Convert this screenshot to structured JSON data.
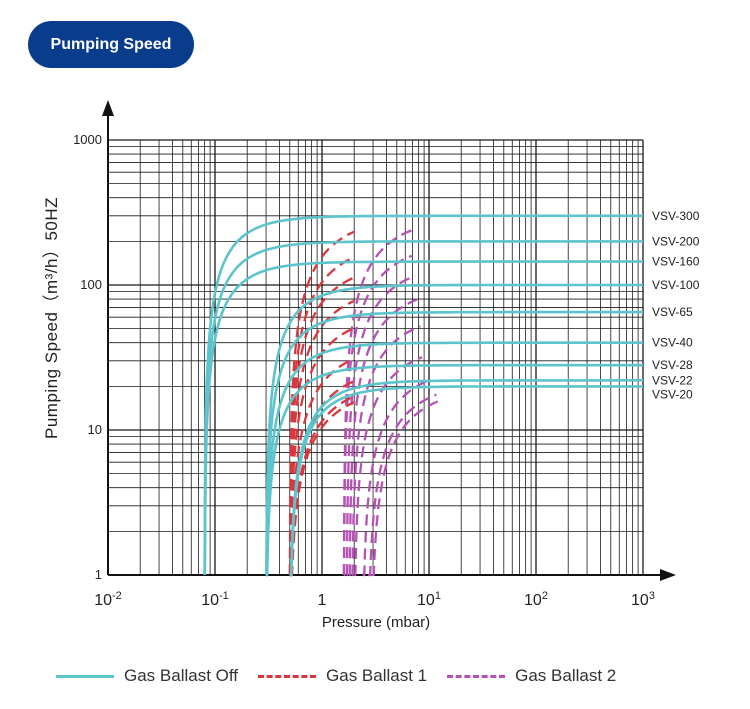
{
  "header": {
    "badge_label": "Pumping Speed"
  },
  "colors": {
    "badge": "#0a3c8c",
    "gas_ballast_off": "#5bc4cc",
    "gas_ballast_1": "#d9363e",
    "gas_ballast_2": "#b552b4",
    "grid": "#1a1a1a"
  },
  "chart_data": {
    "type": "line",
    "xscale": "log",
    "yscale": "log",
    "xlim": [
      0.01,
      1000
    ],
    "ylim": [
      1,
      1000
    ],
    "grid": true,
    "xlabel": "Pressure  (mbar)",
    "ylabel": "Pumping Speed（m³/h）50HZ",
    "x_ticks": [
      {
        "base": "10",
        "exp": "-2"
      },
      {
        "base": "10",
        "exp": "-1"
      },
      {
        "base": "1",
        "exp": ""
      },
      {
        "base": "10",
        "exp": "1"
      },
      {
        "base": "10",
        "exp": "2"
      },
      {
        "base": "10",
        "exp": "3"
      }
    ],
    "y_ticks": [
      "1",
      "10",
      "100",
      "1000"
    ],
    "legend": {
      "placement": "bottom",
      "entries": [
        {
          "key": "off",
          "label": "Gas Ballast Off",
          "style": "solid"
        },
        {
          "key": "gb1",
          "label": "Gas Ballast 1",
          "style": "dashed"
        },
        {
          "key": "gb2",
          "label": "Gas Ballast 2",
          "style": "dashed"
        }
      ]
    },
    "series": [
      {
        "name": "VSV-300",
        "s_max": 300,
        "off_p0": 0.08,
        "off_k": 0.28,
        "gb1_p0": 0.5,
        "gb1_k": 0.42,
        "gb2_p0": 1.6,
        "gb2_k": 0.42
      },
      {
        "name": "VSV-200",
        "s_max": 200,
        "off_p0": 0.08,
        "off_k": 0.28,
        "gb1_p0": 0.5,
        "gb1_k": 0.42,
        "gb2_p0": 1.6,
        "gb2_k": 0.42
      },
      {
        "name": "VSV-160",
        "s_max": 145,
        "off_p0": 0.08,
        "off_k": 0.28,
        "gb1_p0": 0.5,
        "gb1_k": 0.42,
        "gb2_p0": 1.7,
        "gb2_k": 0.42
      },
      {
        "name": "VSV-100",
        "s_max": 100,
        "off_p0": 0.3,
        "off_k": 0.28,
        "gb1_p0": 0.5,
        "gb1_k": 0.42,
        "gb2_p0": 1.8,
        "gb2_k": 0.42
      },
      {
        "name": "VSV-65",
        "s_max": 65,
        "off_p0": 0.3,
        "off_k": 0.28,
        "gb1_p0": 0.5,
        "gb1_k": 0.42,
        "gb2_p0": 1.9,
        "gb2_k": 0.42
      },
      {
        "name": "VSV-40",
        "s_max": 40,
        "off_p0": 0.3,
        "off_k": 0.28,
        "gb1_p0": 0.5,
        "gb1_k": 0.42,
        "gb2_p0": 2.0,
        "gb2_k": 0.42
      },
      {
        "name": "VSV-28",
        "s_max": 28,
        "off_p0": 0.3,
        "off_k": 0.28,
        "gb1_p0": 0.5,
        "gb1_k": 0.42,
        "gb2_p0": 2.4,
        "gb2_k": 0.42
      },
      {
        "name": "VSV-22",
        "s_max": 22,
        "off_p0": 0.5,
        "off_k": 0.28,
        "gb1_p0": 0.5,
        "gb1_k": 0.42,
        "gb2_p0": 2.7,
        "gb2_k": 0.42
      },
      {
        "name": "VSV-20",
        "s_max": 20,
        "off_p0": 0.5,
        "off_k": 0.28,
        "gb1_p0": 0.5,
        "gb1_k": 0.42,
        "gb2_p0": 2.9,
        "gb2_k": 0.42
      }
    ]
  }
}
